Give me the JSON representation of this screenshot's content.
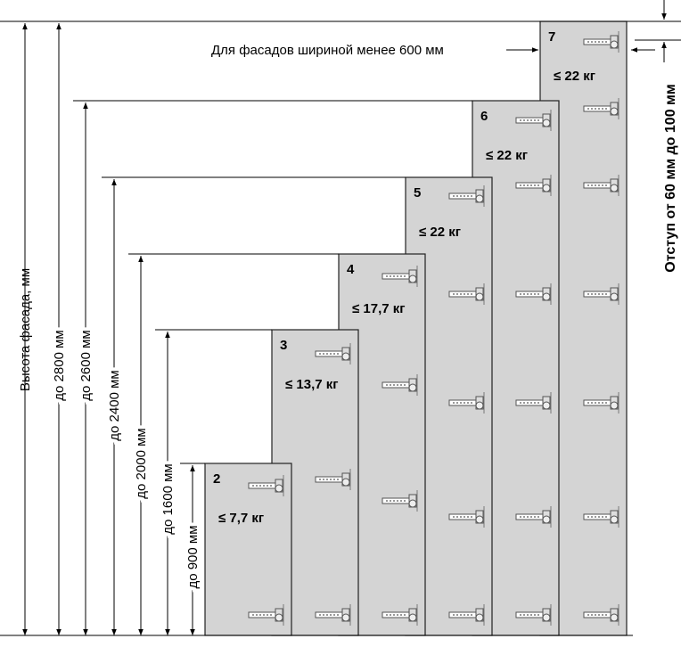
{
  "annotations": {
    "narrow": "Для фасадов шириной менее 600 мм",
    "offset": "Отступ от 60 мм до 100 мм"
  },
  "height_axis": {
    "label": "Высота фасада, мм",
    "limits": [
      "до 2800 мм",
      "до 2600 мм",
      "до 2400 мм",
      "до 2000 мм",
      "до 1600 мм",
      "до 900 мм"
    ]
  },
  "panels": [
    {
      "number": "2",
      "weight": "≤ 7,7 кг"
    },
    {
      "number": "3",
      "weight": "≤ 13,7 кг"
    },
    {
      "number": "4",
      "weight": "≤ 17,7 кг"
    },
    {
      "number": "5",
      "weight": "≤ 22 кг"
    },
    {
      "number": "6",
      "weight": "≤ 22 кг"
    },
    {
      "number": "7",
      "weight": "≤ 22 кг"
    }
  ]
}
